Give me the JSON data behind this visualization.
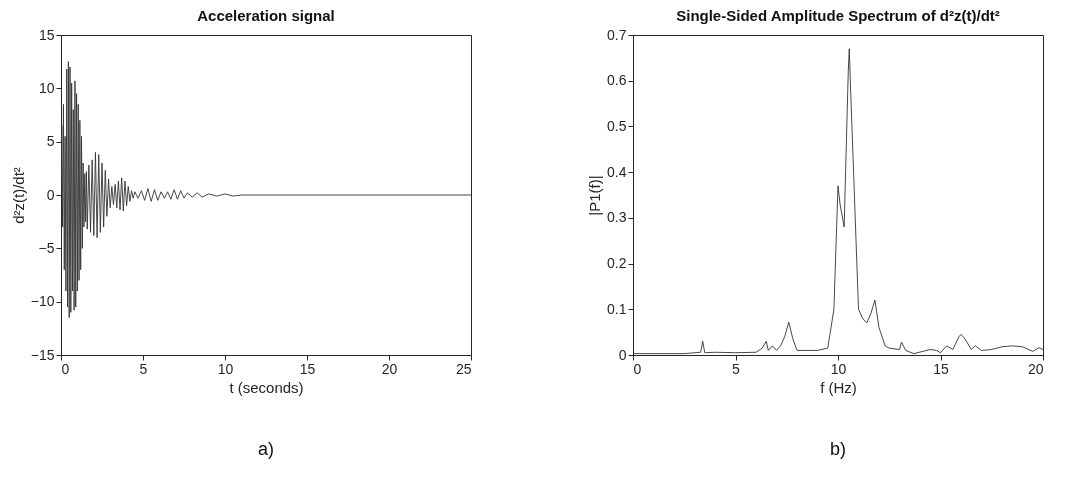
{
  "chart_data": [
    {
      "type": "line",
      "title": "Acceleration signal",
      "xlabel": "t (seconds)",
      "ylabel": "d²z(t)/dt²",
      "annotations": [
        "a)"
      ],
      "xlim": [
        0,
        25
      ],
      "xticks": [
        0,
        5,
        10,
        15,
        20,
        25
      ],
      "ylim": [
        -15,
        15
      ],
      "yticks": [
        -15,
        -10,
        -5,
        0,
        5,
        10,
        15
      ],
      "series": [
        {
          "color": "#333333",
          "x": [
            0,
            0.05,
            0.1,
            0.15,
            0.2,
            0.25,
            0.3,
            0.35,
            0.4,
            0.45,
            0.5,
            0.55,
            0.6,
            0.65,
            0.7,
            0.75,
            0.8,
            0.85,
            0.9,
            0.95,
            1.0,
            1.05,
            1.1,
            1.15,
            1.2,
            1.25,
            1.3,
            1.35,
            1.4,
            1.45,
            1.5,
            1.55,
            1.6,
            1.7,
            1.8,
            1.9,
            2.0,
            2.1,
            2.2,
            2.3,
            2.4,
            2.5,
            2.6,
            2.7,
            2.8,
            2.9,
            3.0,
            3.1,
            3.2,
            3.3,
            3.4,
            3.5,
            3.6,
            3.7,
            3.8,
            3.9,
            4.0,
            4.1,
            4.2,
            4.3,
            4.4,
            4.5,
            4.7,
            4.9,
            5.1,
            5.3,
            5.5,
            5.7,
            5.9,
            6.1,
            6.3,
            6.5,
            6.7,
            6.9,
            7.1,
            7.3,
            7.5,
            7.7,
            8.0,
            8.3,
            8.6,
            9.0,
            9.5,
            10,
            10.5,
            11,
            25
          ],
          "values": [
            0,
            6.5,
            -3,
            8.5,
            -7,
            5.5,
            -9,
            11.8,
            -10.5,
            12.5,
            -11.5,
            12,
            -11,
            10.5,
            -9,
            8,
            -10.8,
            10.7,
            -10.5,
            9.5,
            -9,
            8.5,
            -8,
            7,
            -7,
            5.5,
            -5,
            3,
            -3,
            2,
            -2.5,
            2.2,
            -3.2,
            2.8,
            -3.5,
            3.3,
            -3.8,
            4,
            -4,
            3.8,
            -3.5,
            3,
            -3,
            2.3,
            -2,
            1.5,
            -1.2,
            0.8,
            -0.9,
            1,
            -1.2,
            1.3,
            -1.4,
            1.6,
            -1.5,
            1.3,
            -1,
            0.8,
            -0.6,
            0.4,
            -0.3,
            0.3,
            -0.3,
            0.4,
            -0.5,
            0.6,
            -0.6,
            0.5,
            -0.5,
            0.3,
            -0.3,
            0.3,
            -0.4,
            0.5,
            -0.4,
            0.4,
            -0.3,
            0.2,
            -0.2,
            0.2,
            -0.2,
            0.1,
            -0.1,
            0.1,
            -0.1,
            0,
            0
          ]
        }
      ]
    },
    {
      "type": "line",
      "title": "Single-Sided Amplitude Spectrum of d²z(t)/dt²",
      "xlabel": "f (Hz)",
      "ylabel": "|P1(f)|",
      "annotations": [
        "b)"
      ],
      "xlim": [
        0,
        20
      ],
      "xticks": [
        0,
        5,
        10,
        15,
        20
      ],
      "ylim": [
        0,
        0.7
      ],
      "yticks": [
        0,
        0.1,
        0.2,
        0.3,
        0.4,
        0.5,
        0.6,
        0.7
      ],
      "series": [
        {
          "color": "#333333",
          "x": [
            0,
            2.5,
            3.3,
            3.4,
            3.5,
            4,
            5,
            6,
            6.3,
            6.5,
            6.6,
            6.8,
            7.0,
            7.2,
            7.4,
            7.6,
            7.8,
            8,
            9,
            9.5,
            9.8,
            10.0,
            10.1,
            10.3,
            10.5,
            10.55,
            10.6,
            10.8,
            11,
            11.2,
            11.4,
            11.6,
            11.8,
            12,
            12.3,
            12.5,
            13,
            13.1,
            13.3,
            13.7,
            14.5,
            14.8,
            15,
            15.3,
            15.6,
            15.9,
            16,
            16.2,
            16.5,
            16.7,
            17,
            17.5,
            18,
            18.5,
            19,
            19.5,
            19.8,
            20
          ],
          "values": [
            0.003,
            0.003,
            0.006,
            0.03,
            0.005,
            0.006,
            0.005,
            0.006,
            0.015,
            0.03,
            0.01,
            0.02,
            0.01,
            0.02,
            0.04,
            0.072,
            0.035,
            0.01,
            0.01,
            0.015,
            0.1,
            0.37,
            0.33,
            0.28,
            0.62,
            0.67,
            0.6,
            0.35,
            0.1,
            0.08,
            0.07,
            0.09,
            0.12,
            0.06,
            0.02,
            0.015,
            0.012,
            0.028,
            0.01,
            0.003,
            0.012,
            0.01,
            0.005,
            0.02,
            0.012,
            0.04,
            0.045,
            0.035,
            0.012,
            0.02,
            0.01,
            0.012,
            0.018,
            0.02,
            0.018,
            0.008,
            0.016,
            0.012
          ]
        }
      ]
    }
  ]
}
